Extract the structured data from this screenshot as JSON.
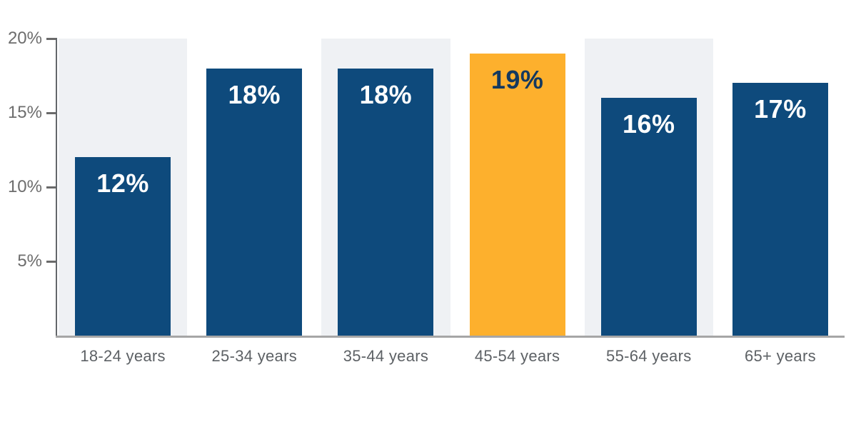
{
  "chart_data": {
    "type": "bar",
    "title": "",
    "xlabel": "",
    "ylabel": "",
    "categories": [
      "18-24 years",
      "25-34 years",
      "35-44 years",
      "45-54 years",
      "55-64 years",
      "65+ years"
    ],
    "values": [
      12,
      18,
      18,
      19,
      16,
      17
    ],
    "value_labels": [
      "12%",
      "18%",
      "18%",
      "19%",
      "16%",
      "17%"
    ],
    "ylim": [
      0,
      20
    ],
    "yticks": [
      {
        "value": 20,
        "label": "20%"
      },
      {
        "value": 15,
        "label": "15%"
      },
      {
        "value": 10,
        "label": "10%"
      },
      {
        "value": 5,
        "label": "5%"
      }
    ],
    "grid": false,
    "legend": false,
    "highlight_index": 3,
    "background_columns": [
      0,
      2,
      4
    ],
    "colors": {
      "bar_primary": "#0e4a7c",
      "bar_highlight": "#fdb02d",
      "column_background": "#eff1f4",
      "value_label_on_primary": "#ffffff",
      "value_label_on_highlight": "#14395f",
      "axis_line": "#63676b",
      "baseline": "#a6a6a6",
      "tick_color": "#6a6a6a",
      "tick_label_color": "#6d6d6d",
      "x_label_color": "#5d6165"
    }
  }
}
